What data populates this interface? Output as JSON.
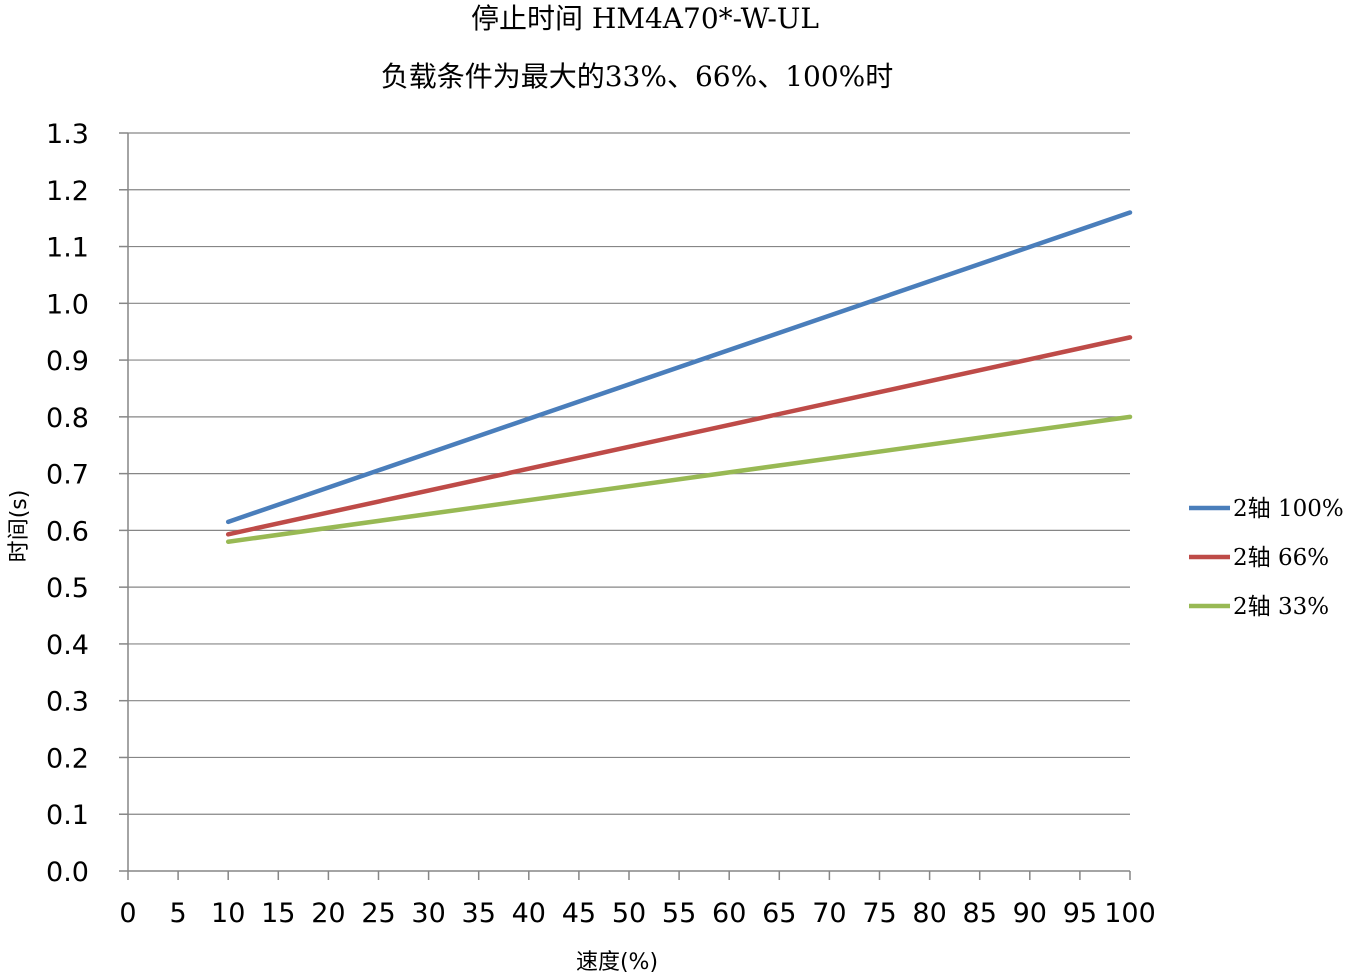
{
  "chart_data": {
    "type": "line",
    "title": "停止时间 HM4A70*-W-UL",
    "subtitle": "负载条件为最大的33%、66%、100%时",
    "xlabel": "速度(%)",
    "ylabel": "时间(s)",
    "xlim": [
      0,
      100
    ],
    "ylim": [
      0.0,
      1.3
    ],
    "x_ticks": [
      0,
      5,
      10,
      15,
      20,
      25,
      30,
      35,
      40,
      45,
      50,
      55,
      60,
      65,
      70,
      75,
      80,
      85,
      90,
      95,
      100
    ],
    "x_tick_labels": [
      "0",
      "5",
      "10",
      "15",
      "20",
      "25",
      "30",
      "35",
      "40",
      "45",
      "50",
      "55",
      "60",
      "65",
      "70",
      "75",
      "80",
      "85",
      "90",
      "95",
      "100"
    ],
    "y_ticks": [
      0.0,
      0.1,
      0.2,
      0.3,
      0.4,
      0.5,
      0.6,
      0.7,
      0.8,
      0.9,
      1.0,
      1.1,
      1.2,
      1.3
    ],
    "y_tick_labels": [
      "0.0",
      "0.1",
      "0.2",
      "0.3",
      "0.4",
      "0.5",
      "0.6",
      "0.7",
      "0.8",
      "0.9",
      "1.0",
      "1.1",
      "1.2",
      "1.3"
    ],
    "grid": "horizontal",
    "legend_position": "right",
    "series": [
      {
        "name": "2轴 100%",
        "color": "#4a7ebb",
        "x": [
          10,
          100
        ],
        "y": [
          0.615,
          1.16
        ]
      },
      {
        "name": "2轴 66%",
        "color": "#be4b48",
        "x": [
          10,
          100
        ],
        "y": [
          0.593,
          0.94
        ]
      },
      {
        "name": "2轴 33%",
        "color": "#98b954",
        "x": [
          10,
          100
        ],
        "y": [
          0.58,
          0.8
        ]
      }
    ]
  }
}
